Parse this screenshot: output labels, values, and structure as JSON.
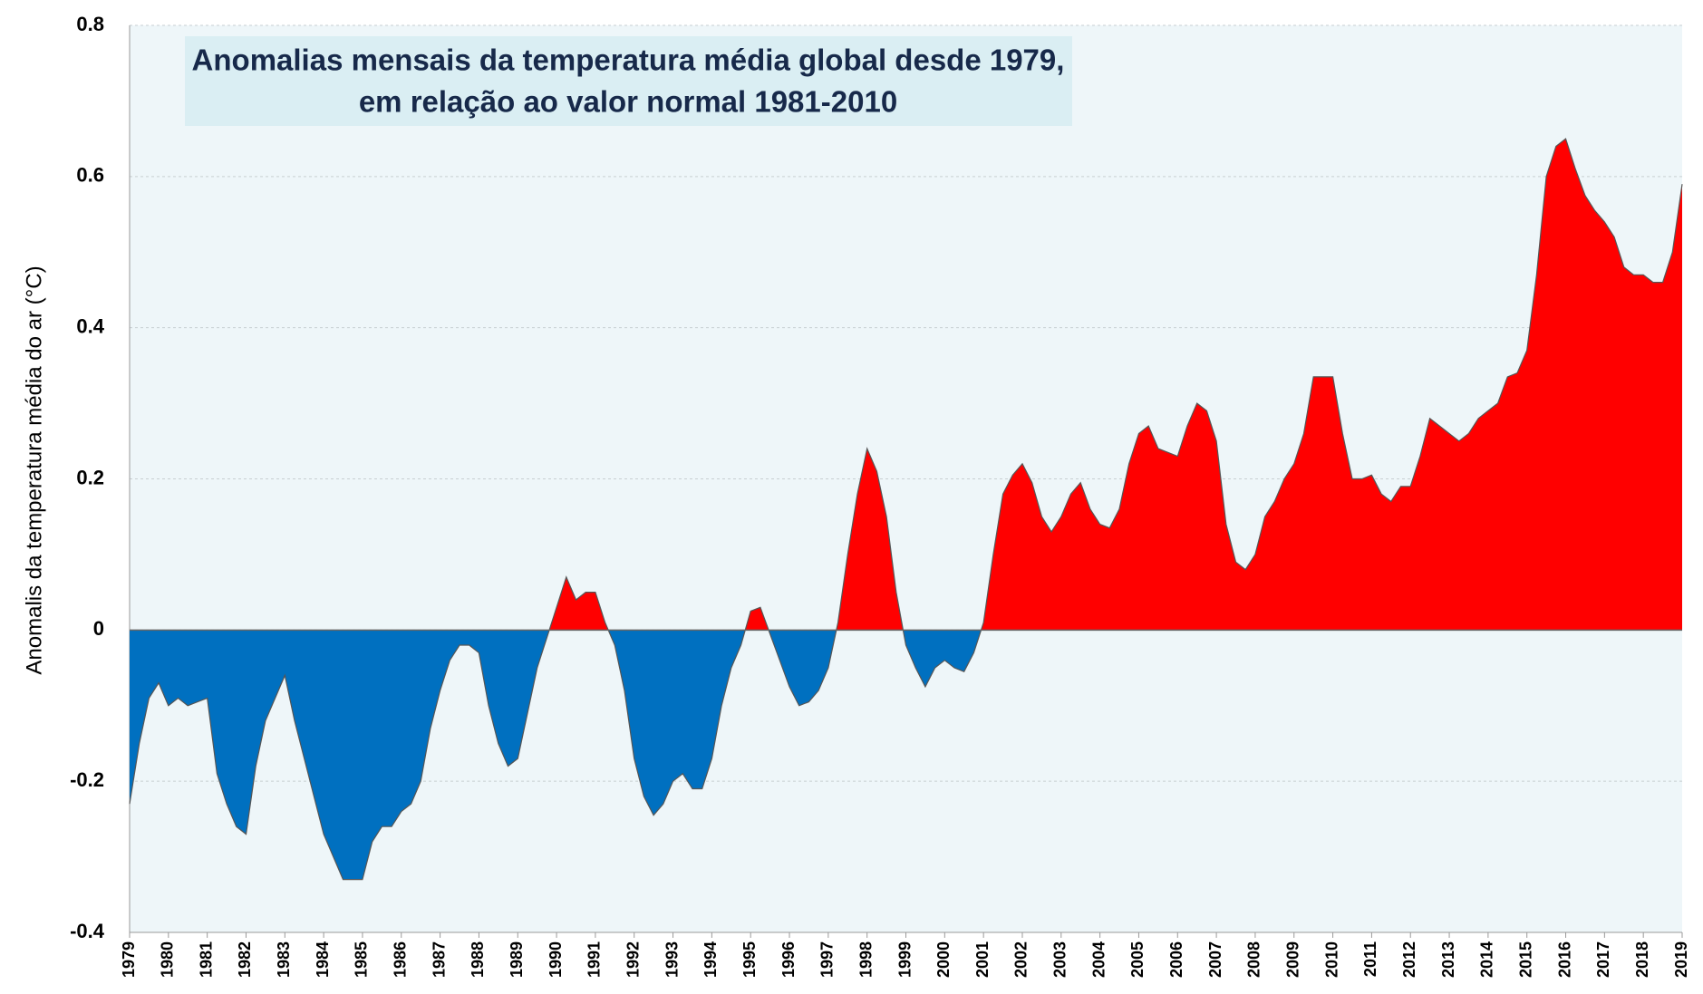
{
  "chart_data": {
    "type": "area",
    "title": [
      "Anomalias mensais da temperatura média global desde 1979,",
      "em relação ao valor normal 1981-2010"
    ],
    "y_label": "Anomalis da temperatura média do ar (°C)",
    "positive_color": "#ff0000",
    "negative_color": "#0070c0",
    "x": [
      1979,
      1979.25,
      1979.5,
      1979.75,
      1980,
      1980.25,
      1980.5,
      1980.75,
      1981,
      1981.25,
      1981.5,
      1981.75,
      1982,
      1982.25,
      1982.5,
      1982.75,
      1983,
      1983.25,
      1983.5,
      1983.75,
      1984,
      1984.25,
      1984.5,
      1984.75,
      1985,
      1985.25,
      1985.5,
      1985.75,
      1986,
      1986.25,
      1986.5,
      1986.75,
      1987,
      1987.25,
      1987.5,
      1987.75,
      1988,
      1988.25,
      1988.5,
      1988.75,
      1989,
      1989.25,
      1989.5,
      1989.75,
      1990,
      1990.25,
      1990.5,
      1990.75,
      1991,
      1991.25,
      1991.5,
      1991.75,
      1992,
      1992.25,
      1992.5,
      1992.75,
      1993,
      1993.25,
      1993.5,
      1993.75,
      1994,
      1994.25,
      1994.5,
      1994.75,
      1995,
      1995.25,
      1995.5,
      1995.75,
      1996,
      1996.25,
      1996.5,
      1996.75,
      1997,
      1997.25,
      1997.5,
      1997.75,
      1998,
      1998.25,
      1998.5,
      1998.75,
      1999,
      1999.25,
      1999.5,
      1999.75,
      2000,
      2000.25,
      2000.5,
      2000.75,
      2001,
      2001.25,
      2001.5,
      2001.75,
      2002,
      2002.25,
      2002.5,
      2002.75,
      2003,
      2003.25,
      2003.5,
      2003.75,
      2004,
      2004.25,
      2004.5,
      2004.75,
      2005,
      2005.25,
      2005.5,
      2005.75,
      2006,
      2006.25,
      2006.5,
      2006.75,
      2007,
      2007.25,
      2007.5,
      2007.75,
      2008,
      2008.25,
      2008.5,
      2008.75,
      2009,
      2009.25,
      2009.5,
      2009.75,
      2010,
      2010.25,
      2010.5,
      2010.75,
      2011,
      2011.25,
      2011.5,
      2011.75,
      2012,
      2012.25,
      2012.5,
      2012.75,
      2013,
      2013.25,
      2013.5,
      2013.75,
      2014,
      2014.25,
      2014.5,
      2014.75,
      2015,
      2015.25,
      2015.5,
      2015.75,
      2016,
      2016.25,
      2016.5,
      2016.75,
      2017,
      2017.25,
      2017.5,
      2017.75,
      2018,
      2018.25,
      2018.5,
      2018.75,
      2019
    ],
    "values": [
      -0.23,
      -0.15,
      -0.09,
      -0.07,
      -0.1,
      -0.09,
      -0.1,
      -0.095,
      -0.09,
      -0.19,
      -0.23,
      -0.26,
      -0.27,
      -0.18,
      -0.12,
      -0.09,
      -0.06,
      -0.12,
      -0.17,
      -0.22,
      -0.27,
      -0.3,
      -0.33,
      -0.33,
      -0.33,
      -0.28,
      -0.26,
      -0.26,
      -0.24,
      -0.23,
      -0.2,
      -0.13,
      -0.08,
      -0.04,
      -0.02,
      -0.02,
      -0.03,
      -0.1,
      -0.15,
      -0.18,
      -0.17,
      -0.11,
      -0.05,
      -0.01,
      0.03,
      0.07,
      0.04,
      0.05,
      0.05,
      0.01,
      -0.02,
      -0.08,
      -0.17,
      -0.22,
      -0.245,
      -0.23,
      -0.2,
      -0.19,
      -0.21,
      -0.21,
      -0.17,
      -0.1,
      -0.05,
      -0.02,
      0.025,
      0.03,
      -0.005,
      -0.04,
      -0.075,
      -0.1,
      -0.095,
      -0.08,
      -0.05,
      0.01,
      0.1,
      0.18,
      0.24,
      0.21,
      0.15,
      0.05,
      -0.02,
      -0.05,
      -0.075,
      -0.05,
      -0.04,
      -0.05,
      -0.055,
      -0.03,
      0.01,
      0.1,
      0.18,
      0.205,
      0.22,
      0.195,
      0.15,
      0.13,
      0.15,
      0.18,
      0.195,
      0.16,
      0.14,
      0.135,
      0.16,
      0.22,
      0.26,
      0.27,
      0.24,
      0.235,
      0.23,
      0.27,
      0.3,
      0.29,
      0.25,
      0.14,
      0.09,
      0.08,
      0.1,
      0.15,
      0.17,
      0.2,
      0.22,
      0.26,
      0.335,
      0.335,
      0.335,
      0.26,
      0.2,
      0.2,
      0.205,
      0.18,
      0.17,
      0.19,
      0.19,
      0.23,
      0.28,
      0.27,
      0.26,
      0.25,
      0.26,
      0.28,
      0.29,
      0.3,
      0.335,
      0.34,
      0.37,
      0.47,
      0.6,
      0.64,
      0.65,
      0.61,
      0.575,
      0.555,
      0.54,
      0.52,
      0.48,
      0.47,
      0.47,
      0.46,
      0.46,
      0.5,
      0.59
    ],
    "xlim": [
      1979,
      2019
    ],
    "xticks": [
      1979,
      1980,
      1981,
      1982,
      1983,
      1984,
      1985,
      1986,
      1987,
      1988,
      1989,
      1990,
      1991,
      1992,
      1993,
      1994,
      1995,
      1996,
      1997,
      1998,
      1999,
      2000,
      2001,
      2002,
      2003,
      2004,
      2005,
      2006,
      2007,
      2008,
      2009,
      2010,
      2011,
      2012,
      2013,
      2014,
      2015,
      2016,
      2017,
      2018,
      2019
    ],
    "ylim": [
      -0.4,
      0.8
    ],
    "yticks": [
      -0.4,
      -0.2,
      0,
      0.2,
      0.4,
      0.6,
      0.8
    ],
    "grid": true
  }
}
